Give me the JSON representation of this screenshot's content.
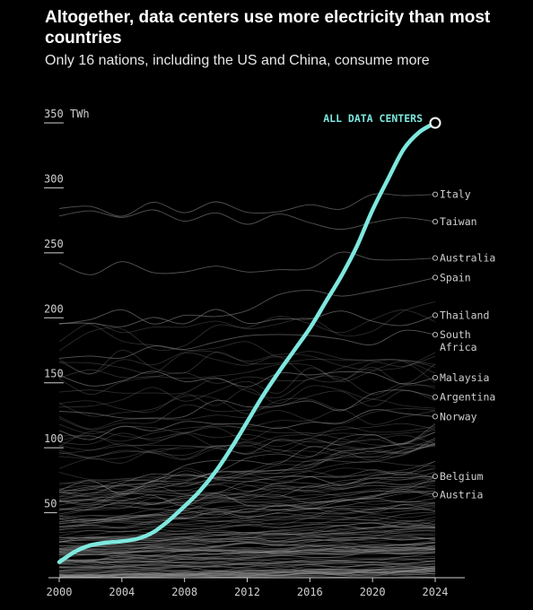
{
  "header": {
    "title": "Altogether, data centers use more electricity than most countries",
    "subtitle": "Only 16 nations, including the US and China, consume more"
  },
  "colors": {
    "background": "#000000",
    "highlight": "#7ee8df",
    "country_lines": "#8a8a8a",
    "text": "#cfcfcf"
  },
  "chart_data": {
    "type": "line",
    "title": "Altogether, data centers use more electricity than most countries",
    "subtitle": "Only 16 nations, including the US and China, consume more",
    "xlabel": "",
    "ylabel": "TWh",
    "xlim": [
      2000,
      2024
    ],
    "ylim": [
      0,
      350
    ],
    "x_ticks": [
      "2000",
      "2004",
      "2008",
      "2012",
      "2016",
      "2020",
      "2024"
    ],
    "y_ticks": [
      {
        "value": 50,
        "label": "50"
      },
      {
        "value": 100,
        "label": "100"
      },
      {
        "value": 150,
        "label": "150"
      },
      {
        "value": 200,
        "label": "200"
      },
      {
        "value": 250,
        "label": "250"
      },
      {
        "value": 300,
        "label": "300"
      },
      {
        "value": 350,
        "label": "350 TWh"
      }
    ],
    "grid": false,
    "highlight_series": {
      "name": "ALL DATA CENTERS",
      "x": [
        2000,
        2001,
        2002,
        2003,
        2004,
        2005,
        2006,
        2007,
        2008,
        2009,
        2010,
        2011,
        2012,
        2013,
        2014,
        2015,
        2016,
        2017,
        2018,
        2019,
        2020,
        2021,
        2022,
        2023,
        2024
      ],
      "values": [
        12,
        20,
        25,
        27,
        28,
        30,
        35,
        44,
        55,
        67,
        82,
        100,
        120,
        140,
        158,
        175,
        192,
        212,
        232,
        255,
        283,
        307,
        330,
        343,
        350
      ]
    },
    "labeled_countries": [
      {
        "name": "Italy",
        "end_value": 295
      },
      {
        "name": "Taiwan",
        "end_value": 274
      },
      {
        "name": "Australia",
        "end_value": 246
      },
      {
        "name": "Spain",
        "end_value": 231
      },
      {
        "name": "Thailand",
        "end_value": 202
      },
      {
        "name": "South Africa",
        "end_value": 187
      },
      {
        "name": "Malaysia",
        "end_value": 154
      },
      {
        "name": "Argentina",
        "end_value": 139
      },
      {
        "name": "Norway",
        "end_value": 124
      },
      {
        "name": "Belgium",
        "end_value": 78
      },
      {
        "name": "Austria",
        "end_value": 64
      }
    ]
  }
}
